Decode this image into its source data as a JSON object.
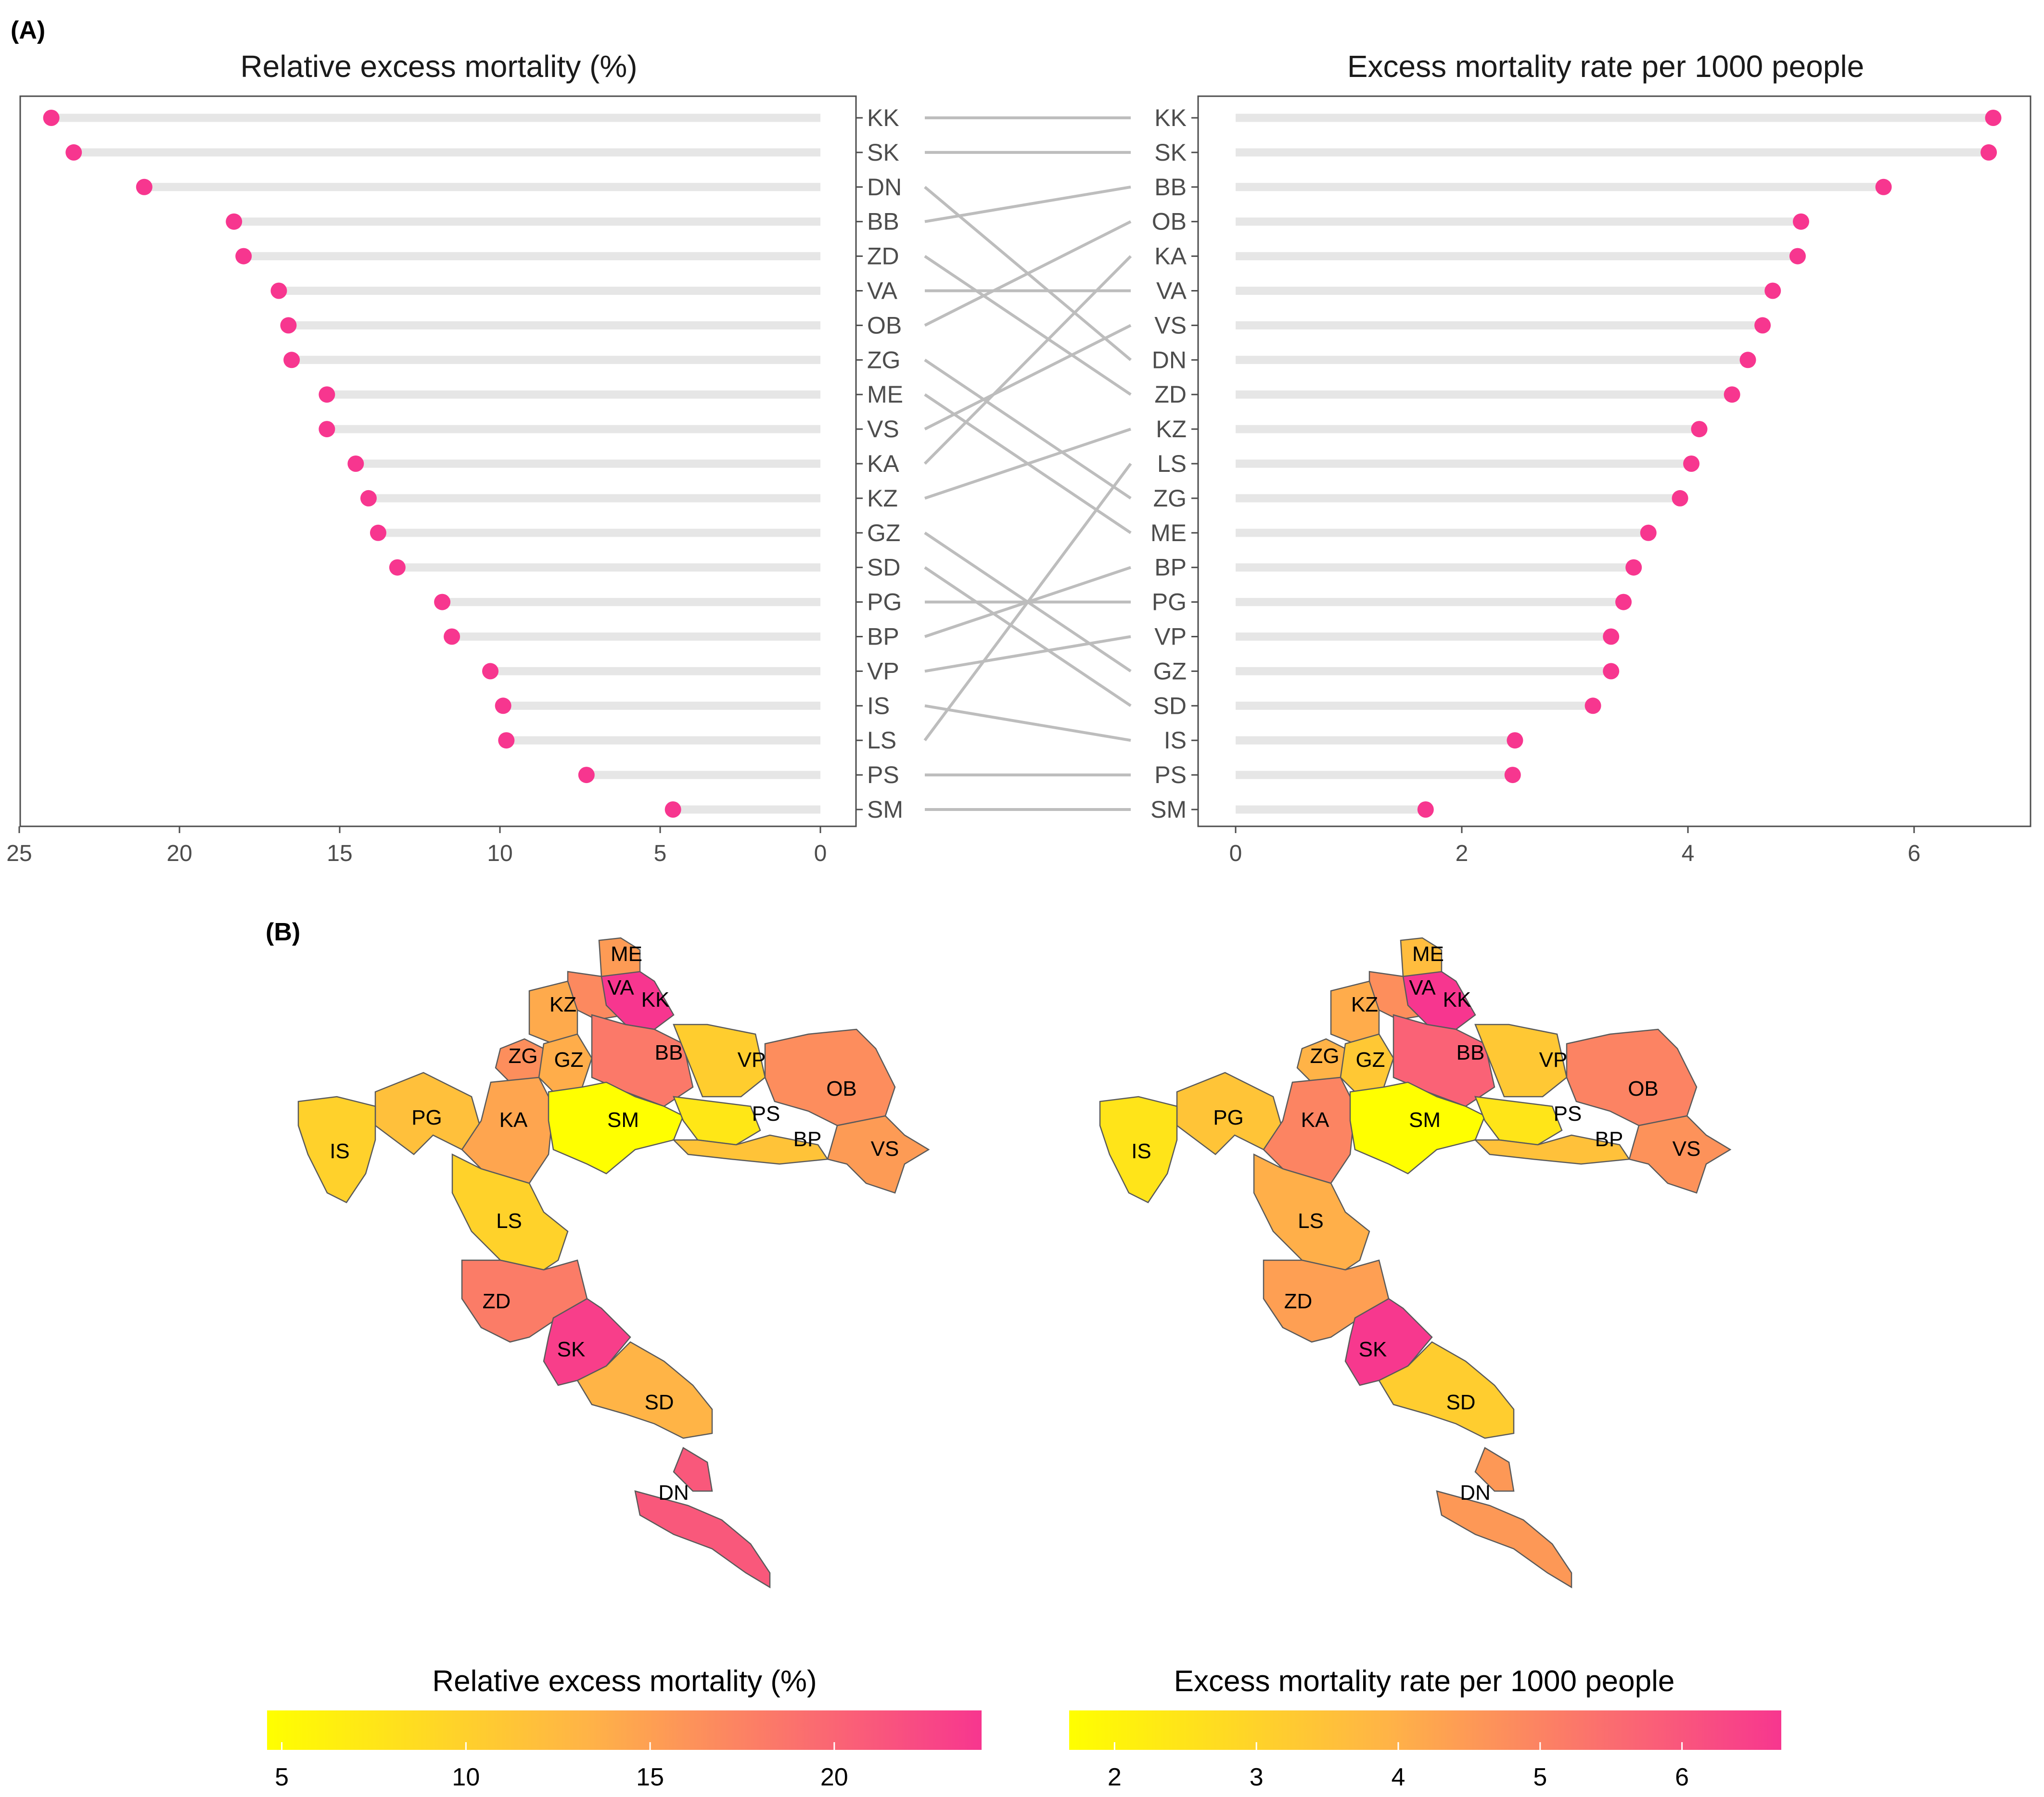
{
  "panel_labels": {
    "a": "(A)",
    "b": "(B)"
  },
  "colors": {
    "dot": "#F7368F",
    "stem": "#e6e6e6",
    "connector": "#bdbdbd",
    "frame": "#4d4d4d",
    "scale_low": "#FFFF00",
    "scale_mid": "#FFB347",
    "scale_high": "#F7368F",
    "region_border": "#5a5a5a"
  },
  "chart_data": [
    {
      "type": "lollipop",
      "title": "Relative excess mortality (%)",
      "x_reversed": true,
      "xlim": [
        0,
        25.3
      ],
      "xticks": [
        25,
        20,
        15,
        10,
        5,
        0
      ],
      "categories": [
        "KK",
        "SK",
        "DN",
        "BB",
        "ZD",
        "VA",
        "OB",
        "ZG",
        "ME",
        "VS",
        "KA",
        "KZ",
        "GZ",
        "SD",
        "PG",
        "BP",
        "VP",
        "IS",
        "LS",
        "PS",
        "SM"
      ],
      "values": [
        24.0,
        23.3,
        21.1,
        18.3,
        18.0,
        16.9,
        16.6,
        16.5,
        15.4,
        15.4,
        14.5,
        14.1,
        13.8,
        13.2,
        11.8,
        11.5,
        10.3,
        9.9,
        9.8,
        7.3,
        4.6
      ]
    },
    {
      "type": "lollipop",
      "title": "Excess mortality rate per 1000 people",
      "xlim": [
        0,
        7.0
      ],
      "xticks": [
        0,
        2,
        4,
        6
      ],
      "categories": [
        "KK",
        "SK",
        "BB",
        "OB",
        "KA",
        "VA",
        "VS",
        "DN",
        "ZD",
        "KZ",
        "LS",
        "ZG",
        "ME",
        "BP",
        "PG",
        "VP",
        "GZ",
        "SD",
        "IS",
        "PS",
        "SM"
      ],
      "values": [
        6.7,
        6.66,
        5.73,
        5.0,
        4.97,
        4.75,
        4.66,
        4.53,
        4.39,
        4.1,
        4.03,
        3.93,
        3.65,
        3.52,
        3.43,
        3.32,
        3.32,
        3.16,
        2.47,
        2.45,
        1.68
      ]
    },
    {
      "type": "choropleth",
      "legend_title": "Relative excess mortality (%)",
      "legend_ticks": [
        5,
        10,
        15,
        20
      ],
      "range": [
        4.6,
        24.0
      ],
      "regions": [
        "ME",
        "VA",
        "KK",
        "KZ",
        "ZG",
        "GZ",
        "BB",
        "VP",
        "OB",
        "PG",
        "KA",
        "SM",
        "PS",
        "BP",
        "VS",
        "IS",
        "LS",
        "ZD",
        "SK",
        "SD",
        "DN"
      ]
    },
    {
      "type": "choropleth",
      "legend_title": "Excess mortality rate per 1000 people",
      "legend_ticks": [
        2,
        3,
        4,
        5,
        6
      ],
      "range": [
        1.68,
        6.7
      ],
      "regions": [
        "ME",
        "VA",
        "KK",
        "KZ",
        "ZG",
        "GZ",
        "BB",
        "VP",
        "OB",
        "PG",
        "KA",
        "SM",
        "PS",
        "BP",
        "VS",
        "IS",
        "LS",
        "ZD",
        "SK",
        "SD",
        "DN"
      ]
    }
  ]
}
